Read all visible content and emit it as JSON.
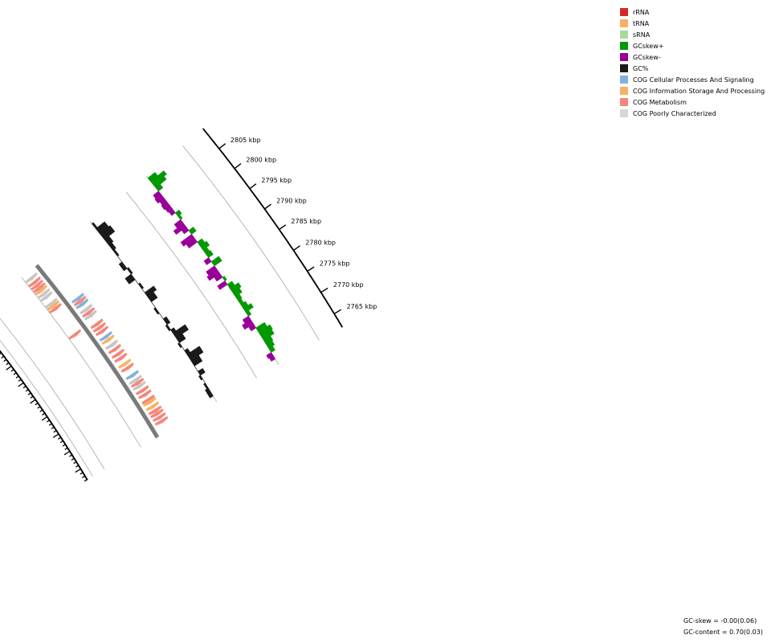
{
  "title": "",
  "legend": [
    {
      "label": "rRNA",
      "color": "#d62728"
    },
    {
      "label": "tRNA",
      "color": "#f7b267"
    },
    {
      "label": "sRNA",
      "color": "#a8d99c"
    },
    {
      "label": "GCskew+",
      "color": "#009900"
    },
    {
      "label": "GCskew-",
      "color": "#990099"
    },
    {
      "label": "GC%",
      "color": "#1a1a1a"
    },
    {
      "label": "COG Cellular Processes And Signaling",
      "color": "#86b1d6"
    },
    {
      "label": "COG Information Storage And Processing",
      "color": "#f7b267"
    },
    {
      "label": "COG Metabolism",
      "color": "#f4877a"
    },
    {
      "label": "COG Poorly Characterized",
      "color": "#d6d6d6"
    }
  ],
  "stats": {
    "gc_skew": "GC-skew = -0.00(0.06)",
    "gc_content": "GC-content = 0.70(0.03)"
  },
  "chart_data": {
    "type": "circular-genome-map",
    "unit": "kbp",
    "position_ticks": [
      {
        "pos": 2805,
        "label": "2805 kbp"
      },
      {
        "pos": 2800,
        "label": "2800 kbp"
      },
      {
        "pos": 2795,
        "label": "2795 kbp"
      },
      {
        "pos": 2790,
        "label": "2790 kbp"
      },
      {
        "pos": 2785,
        "label": "2785 kbp"
      },
      {
        "pos": 2780,
        "label": "2780 kbp"
      },
      {
        "pos": 2775,
        "label": "2775 kbp"
      },
      {
        "pos": 2770,
        "label": "2770 kbp"
      },
      {
        "pos": 2765,
        "label": "2765 kbp"
      }
    ],
    "cds_features": [
      {
        "pos": 2808.4,
        "strand": "fwd",
        "category": "poor"
      },
      {
        "pos": 2807.2,
        "strand": "fwd",
        "category": "metab"
      },
      {
        "pos": 2806.3,
        "strand": "fwd",
        "category": "metab"
      },
      {
        "pos": 2805.5,
        "strand": "fwd",
        "category": "metab"
      },
      {
        "pos": 2804.8,
        "strand": "fwd",
        "category": "info"
      },
      {
        "pos": 2803.8,
        "strand": "fwd",
        "category": "poor"
      },
      {
        "pos": 2802.9,
        "strand": "fwd",
        "category": "poor"
      },
      {
        "pos": 2801.0,
        "strand": "fwd",
        "category": "poor"
      },
      {
        "pos": 2800.3,
        "strand": "fwd",
        "category": "info"
      },
      {
        "pos": 2799.5,
        "strand": "fwd",
        "category": "metab"
      },
      {
        "pos": 2798.2,
        "strand": "rev",
        "category": "cell"
      },
      {
        "pos": 2797.4,
        "strand": "rev",
        "category": "metab"
      },
      {
        "pos": 2796.6,
        "strand": "rev",
        "category": "cell"
      },
      {
        "pos": 2795.1,
        "strand": "rev",
        "category": "poor"
      },
      {
        "pos": 2794.2,
        "strand": "rev",
        "category": "metab"
      },
      {
        "pos": 2793.4,
        "strand": "rev",
        "category": "poor"
      },
      {
        "pos": 2792.0,
        "strand": "fwd",
        "category": "metab"
      },
      {
        "pos": 2791.0,
        "strand": "rev",
        "category": "metab"
      },
      {
        "pos": 2790.0,
        "strand": "rev",
        "category": "metab"
      },
      {
        "pos": 2789.0,
        "strand": "rev",
        "category": "metab"
      },
      {
        "pos": 2787.5,
        "strand": "rev",
        "category": "cell"
      },
      {
        "pos": 2786.6,
        "strand": "rev",
        "category": "info"
      },
      {
        "pos": 2785.2,
        "strand": "rev",
        "category": "poor"
      },
      {
        "pos": 2784.0,
        "strand": "rev",
        "category": "metab"
      },
      {
        "pos": 2782.7,
        "strand": "rev",
        "category": "metab"
      },
      {
        "pos": 2781.6,
        "strand": "rev",
        "category": "metab"
      },
      {
        "pos": 2780.0,
        "strand": "rev",
        "category": "info"
      },
      {
        "pos": 2778.9,
        "strand": "rev",
        "category": "metab"
      },
      {
        "pos": 2776.9,
        "strand": "rev",
        "category": "cell"
      },
      {
        "pos": 2775.6,
        "strand": "rev",
        "category": "poor"
      },
      {
        "pos": 2774.8,
        "strand": "rev",
        "category": "metab"
      },
      {
        "pos": 2774.0,
        "strand": "rev",
        "category": "poor"
      },
      {
        "pos": 2772.8,
        "strand": "rev",
        "category": "metab"
      },
      {
        "pos": 2771.7,
        "strand": "rev",
        "category": "metab"
      },
      {
        "pos": 2770.3,
        "strand": "rev",
        "category": "metab"
      },
      {
        "pos": 2769.7,
        "strand": "rev",
        "category": "info"
      },
      {
        "pos": 2768.5,
        "strand": "rev",
        "category": "info"
      },
      {
        "pos": 2767.4,
        "strand": "rev",
        "category": "metab"
      },
      {
        "pos": 2766.6,
        "strand": "rev",
        "category": "metab"
      },
      {
        "pos": 2765.6,
        "strand": "rev",
        "category": "metab"
      },
      {
        "pos": 2764.6,
        "strand": "rev",
        "category": "metab"
      }
    ],
    "gc_content": [
      [
        2809.4,
        0.71
      ],
      [
        2808.0,
        0.76
      ],
      [
        2806.6,
        0.77
      ],
      [
        2805.0,
        0.73
      ],
      [
        2803.5,
        0.72
      ],
      [
        2802.0,
        0.71
      ],
      [
        2800.4,
        0.7
      ],
      [
        2798.8,
        0.68
      ],
      [
        2797.0,
        0.71
      ],
      [
        2795.5,
        0.66
      ],
      [
        2794.0,
        0.7
      ],
      [
        2792.8,
        0.71
      ],
      [
        2791.5,
        0.7
      ],
      [
        2790.5,
        0.76
      ],
      [
        2789.5,
        0.74
      ],
      [
        2788.0,
        0.7
      ],
      [
        2786.5,
        0.69
      ],
      [
        2785.0,
        0.7
      ],
      [
        2783.5,
        0.72
      ],
      [
        2782.0,
        0.69
      ],
      [
        2780.6,
        0.72
      ],
      [
        2779.8,
        0.78
      ],
      [
        2778.5,
        0.74
      ],
      [
        2777.2,
        0.69
      ],
      [
        2776.2,
        0.7
      ],
      [
        2775.2,
        0.72
      ],
      [
        2774.2,
        0.78
      ],
      [
        2772.7,
        0.75
      ],
      [
        2771.2,
        0.7
      ],
      [
        2769.8,
        0.73
      ],
      [
        2768.8,
        0.69
      ],
      [
        2767.8,
        0.7
      ],
      [
        2766.8,
        0.69
      ],
      [
        2765.5,
        0.68
      ],
      [
        2764.5,
        0.68
      ]
    ],
    "gc_skew": [
      [
        2809.4,
        0.08
      ],
      [
        2808.5,
        0.15
      ],
      [
        2807.6,
        0.12
      ],
      [
        2806.8,
        0.05
      ],
      [
        2805.9,
        -0.06
      ],
      [
        2805.0,
        -0.07
      ],
      [
        2804.0,
        -0.05
      ],
      [
        2803.1,
        -0.06
      ],
      [
        2802.1,
        -0.05
      ],
      [
        2801.2,
        -0.04
      ],
      [
        2800.2,
        0.04
      ],
      [
        2799.3,
        0.02
      ],
      [
        2798.4,
        -0.07
      ],
      [
        2797.4,
        -0.11
      ],
      [
        2796.5,
        -0.05
      ],
      [
        2795.6,
        0.05
      ],
      [
        2794.6,
        -0.12
      ],
      [
        2793.6,
        -0.09
      ],
      [
        2792.6,
        0.05
      ],
      [
        2791.6,
        0.07
      ],
      [
        2790.6,
        0.04
      ],
      [
        2789.6,
        0.05
      ],
      [
        2788.6,
        -0.05
      ],
      [
        2787.6,
        0.08
      ],
      [
        2786.5,
        -0.09
      ],
      [
        2785.5,
        -0.11
      ],
      [
        2784.6,
        -0.06
      ],
      [
        2783.6,
        0.02
      ],
      [
        2782.7,
        -0.08
      ],
      [
        2781.8,
        0.05
      ],
      [
        2780.8,
        0.09
      ],
      [
        2779.8,
        0.07
      ],
      [
        2778.8,
        0.04
      ],
      [
        2777.8,
        0.03
      ],
      [
        2776.8,
        0.05
      ],
      [
        2775.8,
        0.08
      ],
      [
        2774.9,
        0.03
      ],
      [
        2773.9,
        -0.06
      ],
      [
        2773.0,
        -0.09
      ],
      [
        2772.0,
        -0.05
      ],
      [
        2771.0,
        0.09
      ],
      [
        2770.0,
        0.12
      ],
      [
        2769.0,
        0.11
      ],
      [
        2768.0,
        0.07
      ],
      [
        2767.0,
        0.06
      ],
      [
        2766.0,
        0.04
      ],
      [
        2765.0,
        -0.05
      ],
      [
        2764.2,
        -0.04
      ]
    ]
  }
}
